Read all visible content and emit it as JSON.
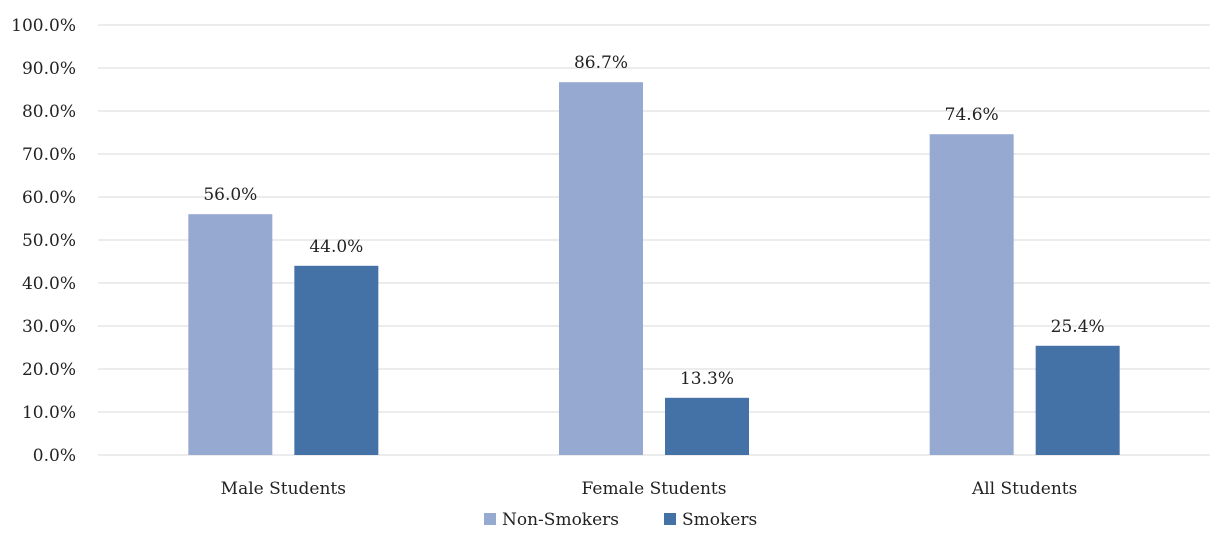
{
  "chart_data": {
    "type": "bar",
    "categories": [
      "Male Students",
      "Female Students",
      "All Students"
    ],
    "series": [
      {
        "name": "Non-Smokers",
        "values": [
          56.0,
          86.7,
          74.6
        ],
        "color": "#95a9d1"
      },
      {
        "name": "Smokers",
        "values": [
          44.0,
          13.3,
          25.4
        ],
        "color": "#4472a6"
      }
    ],
    "data_labels": [
      [
        "56.0%",
        "86.7%",
        "74.6%"
      ],
      [
        "44.0%",
        "13.3%",
        "25.4%"
      ]
    ],
    "y_ticks": [
      "0.0%",
      "10.0%",
      "20.0%",
      "30.0%",
      "40.0%",
      "50.0%",
      "60.0%",
      "70.0%",
      "80.0%",
      "90.0%",
      "100.0%"
    ],
    "ylim": [
      0,
      100
    ],
    "grid": true,
    "legend_position": "bottom",
    "title": "",
    "xlabel": "",
    "ylabel": ""
  }
}
